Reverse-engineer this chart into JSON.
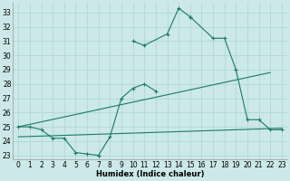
{
  "xlabel": "Humidex (Indice chaleur)",
  "bg_color": "#cce8e8",
  "line_color": "#1a7a6a",
  "grid_color": "#aad4d4",
  "xlim": [
    -0.5,
    23.5
  ],
  "ylim": [
    22.7,
    33.7
  ],
  "yticks": [
    23,
    24,
    25,
    26,
    27,
    28,
    29,
    30,
    31,
    32,
    33
  ],
  "xticks": [
    0,
    1,
    2,
    3,
    4,
    5,
    6,
    7,
    8,
    9,
    10,
    11,
    12,
    13,
    14,
    15,
    16,
    17,
    18,
    19,
    20,
    21,
    22,
    23
  ],
  "seg1_x": [
    0,
    1,
    2,
    3,
    4,
    5,
    6,
    7
  ],
  "seg1_y": [
    25.0,
    25.0,
    24.8,
    24.2,
    24.2,
    23.2,
    23.1,
    23.0
  ],
  "seg2_x": [
    7,
    8,
    9,
    10,
    11,
    12
  ],
  "seg2_y": [
    23.0,
    24.3,
    27.0,
    27.7,
    28.0,
    27.5
  ],
  "seg3_x": [
    10,
    11,
    13,
    14,
    15
  ],
  "seg3_y": [
    31.0,
    30.7,
    31.5,
    33.3,
    32.7
  ],
  "seg4_x": [
    15,
    17,
    18,
    19,
    20,
    21,
    22,
    23
  ],
  "seg4_y": [
    32.7,
    31.2,
    31.2,
    29.0,
    25.5,
    25.5,
    24.8,
    24.8
  ],
  "trend1_x": [
    0,
    22
  ],
  "trend1_y": [
    25.0,
    28.8
  ],
  "trend2_x": [
    0,
    23
  ],
  "trend2_y": [
    24.3,
    24.9
  ]
}
